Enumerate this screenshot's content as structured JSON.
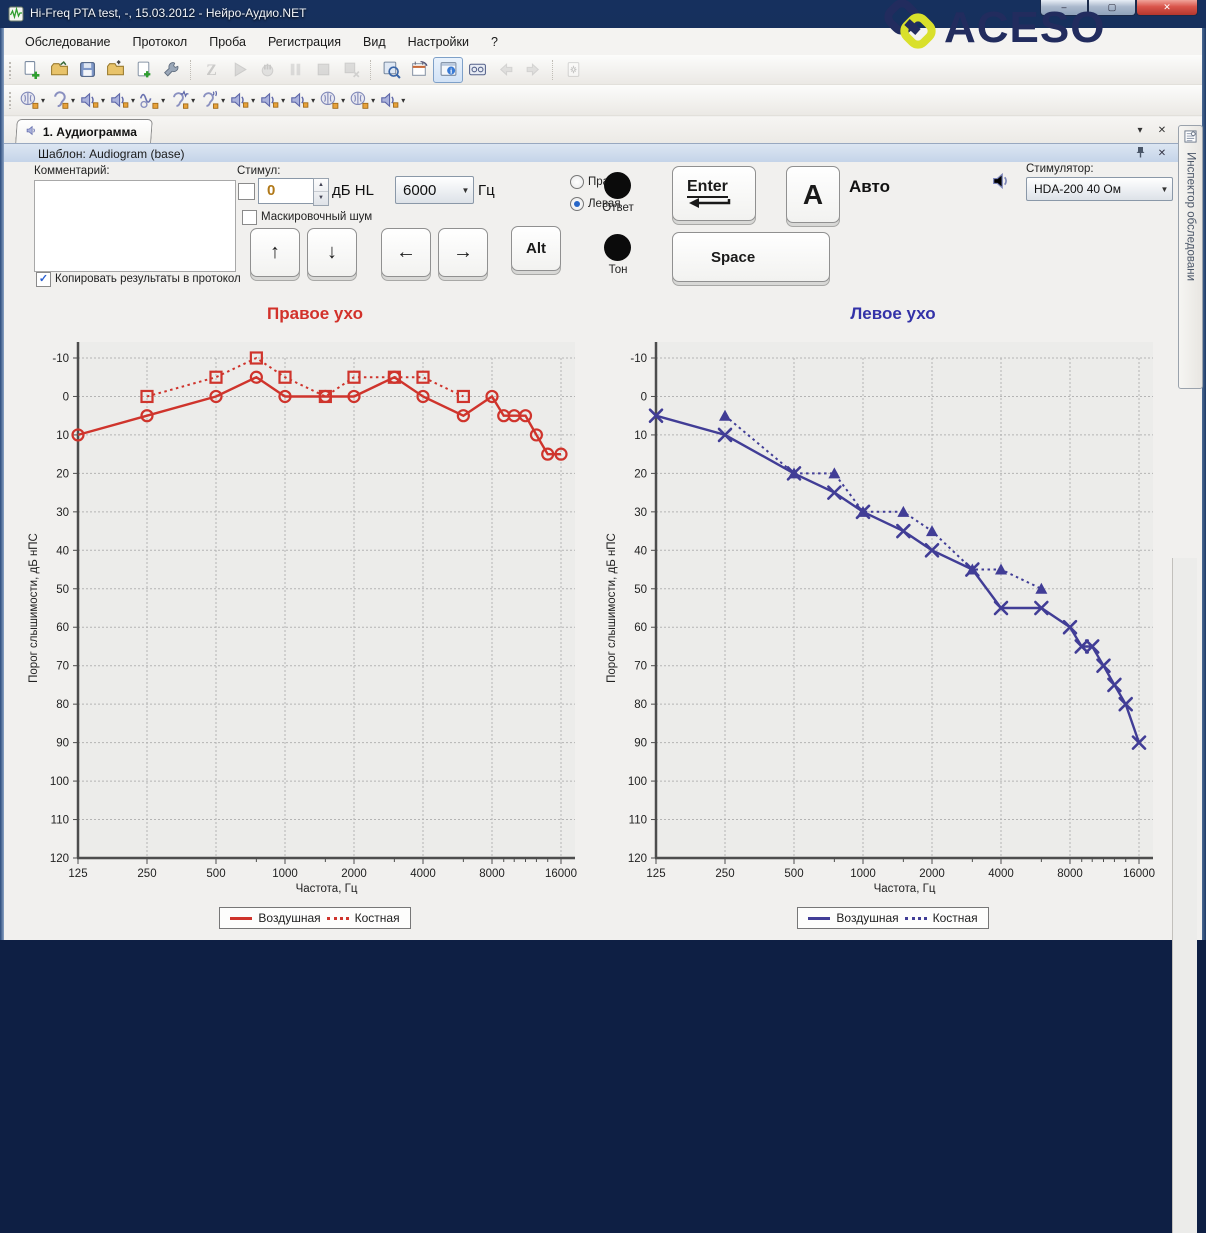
{
  "window": {
    "title": "Hi-Freq PTA test, -, 15.03.2012 - Нейро-Аудио.NET",
    "buttons": {
      "minimize": "–",
      "maximize": "▢",
      "close": "✕"
    }
  },
  "logo": {
    "text": "ACESO",
    "navy": "#222c5e",
    "yellow": "#d9e02b"
  },
  "menu": {
    "items": [
      "Обследование",
      "Протокол",
      "Проба",
      "Регистрация",
      "Вид",
      "Настройки",
      "?"
    ]
  },
  "toolbar_main": {
    "groups": [
      [
        {
          "name": "new-exam",
          "type": "doc-plus"
        },
        {
          "name": "open-exam",
          "type": "folder-open"
        },
        {
          "name": "save-exam",
          "type": "floppy"
        },
        {
          "name": "export-exam",
          "type": "folder-export"
        },
        {
          "name": "new-page",
          "type": "page-plus"
        },
        {
          "name": "test-settings",
          "type": "wrench"
        }
      ],
      [
        {
          "name": "impedance-z",
          "type": "letter-z",
          "disabled": true
        },
        {
          "name": "start-test",
          "type": "play",
          "disabled": true
        },
        {
          "name": "manual-mode",
          "type": "hand",
          "disabled": true
        },
        {
          "name": "pause-test",
          "type": "pause",
          "disabled": true
        },
        {
          "name": "stop-test",
          "type": "stop",
          "disabled": true
        },
        {
          "name": "abort-test",
          "type": "stop-x",
          "disabled": true
        }
      ],
      [
        {
          "name": "probe-settings",
          "type": "search-wrench"
        },
        {
          "name": "protocol-settings",
          "type": "calendar"
        },
        {
          "name": "inspector-panel-toggle",
          "type": "info-panel",
          "selected": true
        },
        {
          "name": "device-panel",
          "type": "tape"
        },
        {
          "name": "nav-back",
          "type": "arrow-left",
          "disabled": true
        },
        {
          "name": "nav-forward",
          "type": "arrow-right",
          "disabled": true
        }
      ],
      [
        {
          "name": "flash-screen",
          "type": "flash",
          "disabled": true
        }
      ]
    ]
  },
  "toolbar_stimuli": {
    "items": [
      {
        "name": "bone-conductor",
        "type": "brain-speaker"
      },
      {
        "name": "ear-phone",
        "type": "ear-speaker"
      },
      {
        "name": "free-field-speaker-1",
        "type": "speaker"
      },
      {
        "name": "free-field-speaker-2",
        "type": "speaker"
      },
      {
        "name": "warble-tone",
        "type": "wave-speaker"
      },
      {
        "name": "ear-pulse-tone",
        "type": "ear-pulse"
      },
      {
        "name": "ear-warble-tone",
        "type": "ear-wave"
      },
      {
        "name": "speaker-3",
        "type": "speaker"
      },
      {
        "name": "speaker-4",
        "type": "speaker"
      },
      {
        "name": "speaker-5",
        "type": "speaker"
      },
      {
        "name": "masking-left",
        "type": "brain-speaker"
      },
      {
        "name": "masking-right",
        "type": "brain-speaker"
      },
      {
        "name": "speaker-6",
        "type": "speaker"
      }
    ]
  },
  "tab": {
    "label": "1. Аудиограмма"
  },
  "tabstrip_buttons": {
    "dropdown": "▾",
    "close": "✕"
  },
  "template_bar": {
    "label": "Шаблон: Audiogram (base)",
    "close": "✕"
  },
  "inspector": {
    "label": "Инспектор обследовани"
  },
  "controls": {
    "comment_label": "Комментарий:",
    "comment_value": "",
    "copy_results_label": "Копировать результаты в протокол",
    "copy_results_checked": true,
    "stimulus_label": "Стимул:",
    "stimulus_checked": false,
    "level_value": "0",
    "level_unit": "дБ HL",
    "freq_value": "6000",
    "freq_unit": "Гц",
    "masking_label": "Маскировочный шум",
    "masking_checked": false,
    "side_right": "Правая",
    "side_left": "Левая",
    "side_selected": "Левая",
    "response_label": "Ответ",
    "tone_label": "Тон",
    "auto_label": "Авто",
    "keys": {
      "up": "↑",
      "down": "↓",
      "left": "←",
      "right": "→",
      "alt": "Alt",
      "enter": "Enter",
      "letter_a": "A",
      "space": "Space"
    },
    "stimulator_label": "Стимулятор:",
    "stimulator_value": "HDA-200 40 Ом"
  },
  "chart_data": [
    {
      "type": "line",
      "title": "Правое ухо",
      "title_color": "#d2312a",
      "color": "#cf342c",
      "xlabel": "Частота, Гц",
      "ylabel": "Порог слышимости, дБ нПС",
      "x_scale": "log",
      "x_ticks": [
        125,
        250,
        500,
        1000,
        2000,
        4000,
        8000,
        16000
      ],
      "ylim": [
        -10,
        120
      ],
      "y_step": 10,
      "grid": true,
      "legend_position": "bottom",
      "series": [
        {
          "name": "Воздушная",
          "line": "solid",
          "marker": "circle",
          "points": [
            [
              125,
              10
            ],
            [
              250,
              5
            ],
            [
              500,
              0
            ],
            [
              750,
              -5
            ],
            [
              1000,
              0
            ],
            [
              1500,
              0
            ],
            [
              2000,
              0
            ],
            [
              3000,
              -5
            ],
            [
              4000,
              0
            ],
            [
              6000,
              5
            ],
            [
              8000,
              0
            ],
            [
              9000,
              5
            ],
            [
              10000,
              5
            ],
            [
              11200,
              5
            ],
            [
              12500,
              10
            ],
            [
              14000,
              15
            ],
            [
              16000,
              15
            ]
          ]
        },
        {
          "name": "Костная",
          "line": "dotted",
          "marker": "square",
          "points": [
            [
              250,
              0
            ],
            [
              500,
              -5
            ],
            [
              750,
              -10
            ],
            [
              1000,
              -5
            ],
            [
              1500,
              0
            ],
            [
              2000,
              -5
            ],
            [
              3000,
              -5
            ],
            [
              4000,
              -5
            ],
            [
              6000,
              0
            ]
          ]
        }
      ]
    },
    {
      "type": "line",
      "title": "Левое ухо",
      "title_color": "#3332a8",
      "color": "#413d96",
      "xlabel": "Частота, Гц",
      "ylabel": "Порог слышимости, дБ нПС",
      "x_scale": "log",
      "x_ticks": [
        125,
        250,
        500,
        1000,
        2000,
        4000,
        8000,
        16000
      ],
      "ylim": [
        -10,
        120
      ],
      "y_step": 10,
      "grid": true,
      "legend_position": "bottom",
      "series": [
        {
          "name": "Воздушная",
          "line": "solid",
          "marker": "x",
          "points": [
            [
              125,
              5
            ],
            [
              250,
              10
            ],
            [
              500,
              20
            ],
            [
              750,
              25
            ],
            [
              1000,
              30
            ],
            [
              1500,
              35
            ],
            [
              2000,
              40
            ],
            [
              3000,
              45
            ],
            [
              4000,
              55
            ],
            [
              6000,
              55
            ],
            [
              8000,
              60
            ],
            [
              9000,
              65
            ],
            [
              10000,
              65
            ],
            [
              11200,
              70
            ],
            [
              12500,
              75
            ],
            [
              14000,
              80
            ],
            [
              16000,
              90
            ]
          ]
        },
        {
          "name": "Костная",
          "line": "dotted",
          "marker": "triangle",
          "points": [
            [
              250,
              5
            ],
            [
              500,
              20
            ],
            [
              750,
              20
            ],
            [
              1000,
              30
            ],
            [
              1500,
              30
            ],
            [
              2000,
              35
            ],
            [
              3000,
              45
            ],
            [
              4000,
              45
            ],
            [
              6000,
              50
            ]
          ]
        }
      ]
    }
  ]
}
